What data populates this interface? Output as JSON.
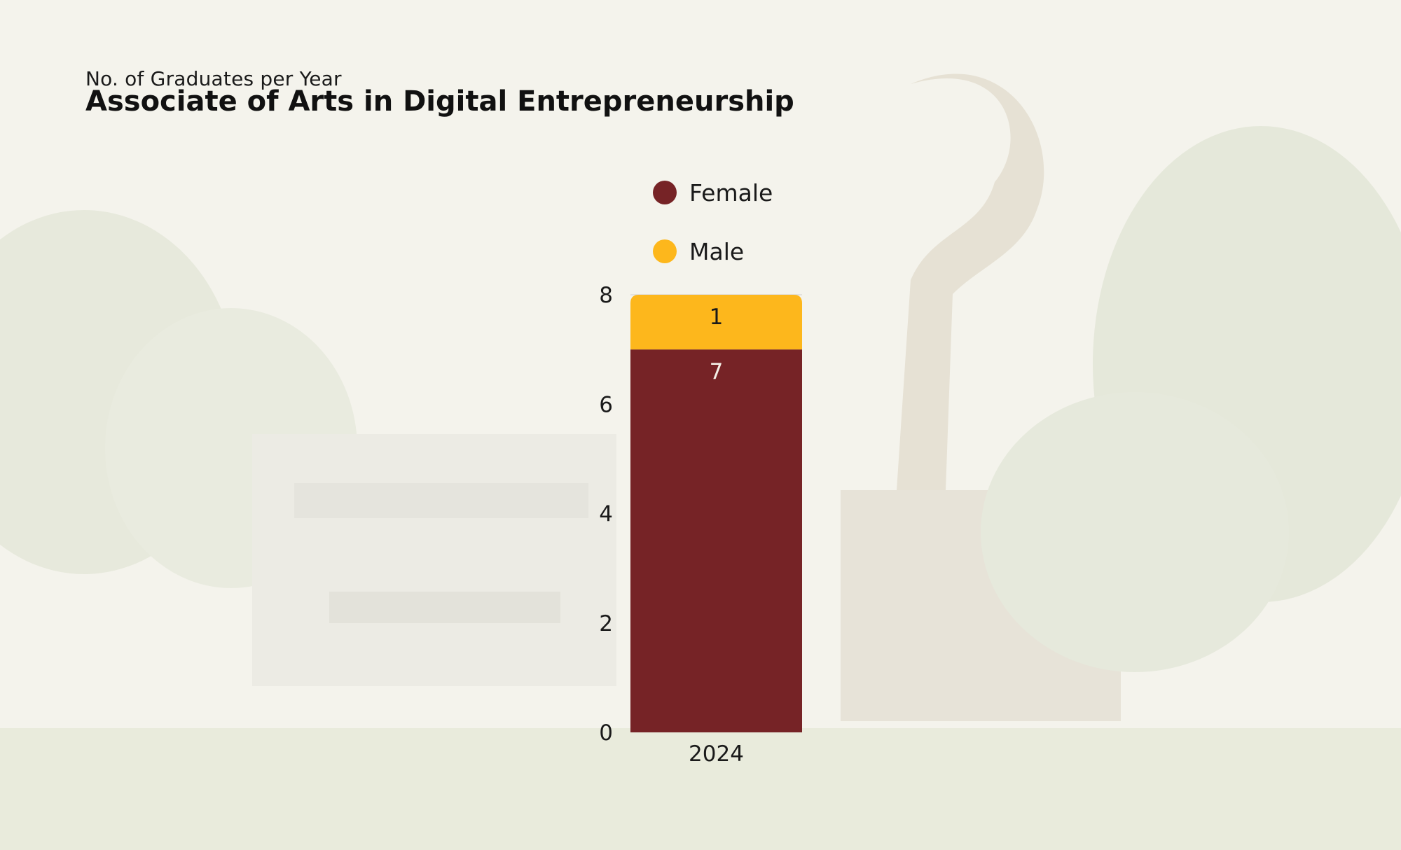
{
  "header": {
    "subtitle": "No. of Graduates per Year",
    "title": "Associate of Arts in Digital Entrepreneurship"
  },
  "colors": {
    "female": "#762326",
    "male": "#fdb71c",
    "female_label": "#f4efe6",
    "male_label": "#1a1a1a"
  },
  "chart_data": {
    "type": "bar",
    "stacked": true,
    "title": "Associate of Arts in Digital Entrepreneurship",
    "subtitle": "No. of Graduates per Year",
    "categories": [
      "2024"
    ],
    "series": [
      {
        "name": "Female",
        "values": [
          7
        ]
      },
      {
        "name": "Male",
        "values": [
          1
        ]
      }
    ],
    "ylim": [
      0,
      8
    ],
    "yticks": [
      "0",
      "2",
      "4",
      "6",
      "8"
    ],
    "legend_position": "top",
    "grid": false
  }
}
